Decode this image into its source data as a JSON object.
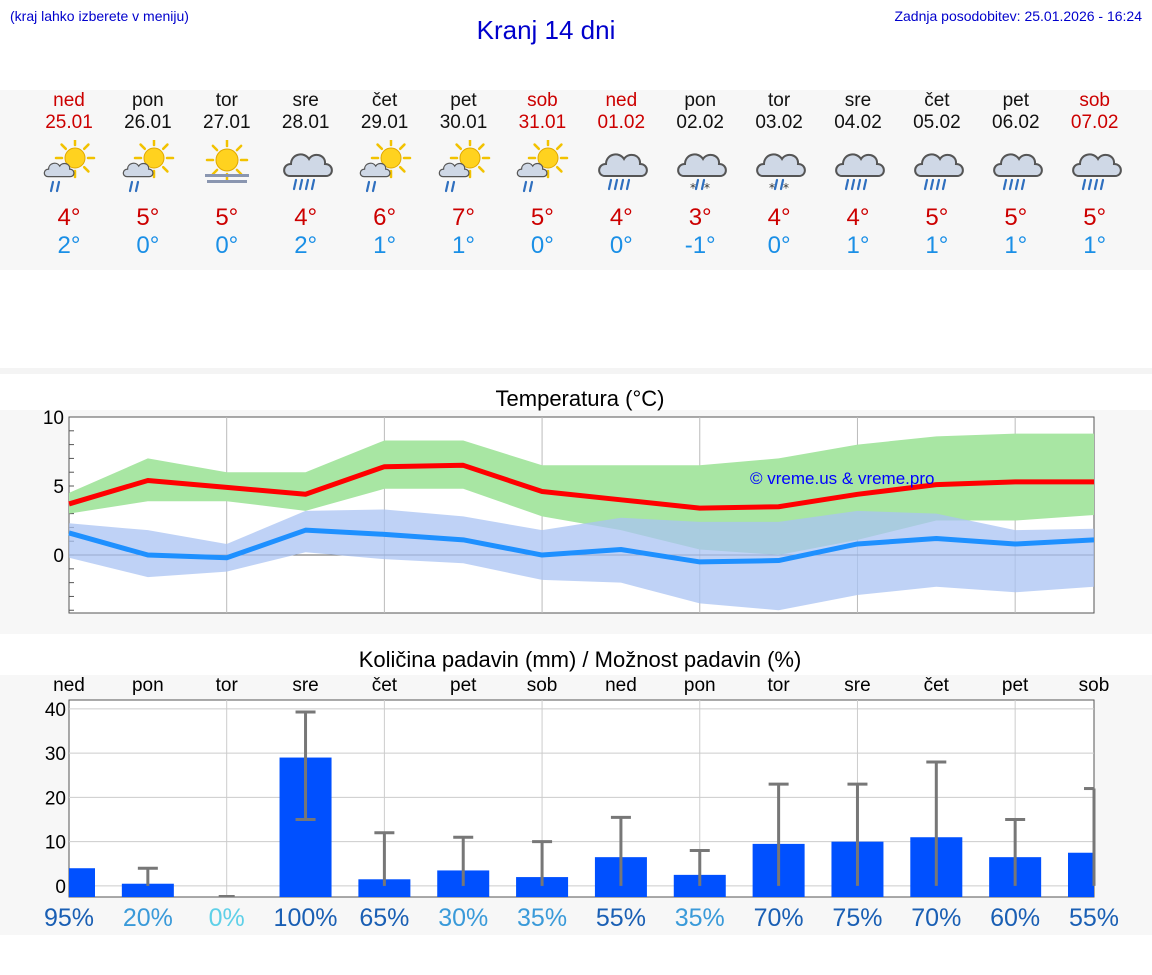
{
  "header": {
    "hint": "(kraj lahko izberete v meniju)",
    "title": "Kranj 14 dni",
    "updated": "Zadnja posodobitev: 25.01.2026 - 16:24"
  },
  "colors": {
    "max": "#cc0000",
    "min": "#1a8fe6",
    "max_line": "#ff0000",
    "min_line": "#1e90ff",
    "max_band": "#a8e6a3",
    "min_band": "#a9c3f3",
    "bar": "#0050ff",
    "errbar": "#777777"
  },
  "days": [
    {
      "name": "ned",
      "date": "25.01",
      "weekend": true,
      "icon": "sun-cloud-rain-icon",
      "tmax": "4°",
      "tmin": "2°"
    },
    {
      "name": "pon",
      "date": "26.01",
      "weekend": false,
      "icon": "sun-cloud-rain-icon",
      "tmax": "5°",
      "tmin": "0°"
    },
    {
      "name": "tor",
      "date": "27.01",
      "weekend": false,
      "icon": "sun-fog-icon",
      "tmax": "5°",
      "tmin": "0°"
    },
    {
      "name": "sre",
      "date": "28.01",
      "weekend": false,
      "icon": "cloud-rain-icon",
      "tmax": "4°",
      "tmin": "2°"
    },
    {
      "name": "čet",
      "date": "29.01",
      "weekend": false,
      "icon": "sun-cloud-rain-icon",
      "tmax": "6°",
      "tmin": "1°"
    },
    {
      "name": "pet",
      "date": "30.01",
      "weekend": false,
      "icon": "sun-cloud-rain-icon",
      "tmax": "7°",
      "tmin": "1°"
    },
    {
      "name": "sob",
      "date": "31.01",
      "weekend": true,
      "icon": "sun-cloud-rain-icon",
      "tmax": "5°",
      "tmin": "0°"
    },
    {
      "name": "ned",
      "date": "01.02",
      "weekend": true,
      "icon": "cloud-rain-icon",
      "tmax": "4°",
      "tmin": "0°"
    },
    {
      "name": "pon",
      "date": "02.02",
      "weekend": false,
      "icon": "cloud-sleet-icon",
      "tmax": "3°",
      "tmin": "-1°"
    },
    {
      "name": "tor",
      "date": "03.02",
      "weekend": false,
      "icon": "cloud-sleet-icon",
      "tmax": "4°",
      "tmin": "0°"
    },
    {
      "name": "sre",
      "date": "04.02",
      "weekend": false,
      "icon": "cloud-rain-icon",
      "tmax": "4°",
      "tmin": "1°"
    },
    {
      "name": "čet",
      "date": "05.02",
      "weekend": false,
      "icon": "cloud-rain-icon",
      "tmax": "5°",
      "tmin": "1°"
    },
    {
      "name": "pet",
      "date": "06.02",
      "weekend": false,
      "icon": "cloud-rain-icon",
      "tmax": "5°",
      "tmin": "1°"
    },
    {
      "name": "sob",
      "date": "07.02",
      "weekend": true,
      "icon": "cloud-rain-icon",
      "tmax": "5°",
      "tmin": "1°"
    }
  ],
  "chart_data": [
    {
      "type": "line",
      "title": "Temperatura (°C)",
      "watermark": "© vreme.us & vreme.pro",
      "ylim": [
        -4.2,
        10
      ],
      "yticks": [
        "10",
        "5",
        "0"
      ],
      "series": [
        {
          "name": "max",
          "values": [
            3.7,
            5.4,
            4.9,
            4.4,
            6.4,
            6.5,
            4.6,
            4.0,
            3.4,
            3.5,
            4.4,
            5.1,
            5.3,
            5.3
          ],
          "band_low": [
            3.0,
            3.9,
            3.9,
            3.2,
            4.8,
            4.8,
            2.8,
            1.8,
            0.4,
            0.0,
            1.1,
            2.5,
            2.5,
            2.9
          ],
          "band_high": [
            4.5,
            7.0,
            6.0,
            6.0,
            8.3,
            8.3,
            6.5,
            6.5,
            6.5,
            7.0,
            8.0,
            8.6,
            8.8,
            8.8
          ]
        },
        {
          "name": "min",
          "values": [
            1.6,
            0.0,
            -0.2,
            1.8,
            1.5,
            1.1,
            0.0,
            0.4,
            -0.5,
            -0.4,
            0.8,
            1.2,
            0.8,
            1.1
          ],
          "band_low": [
            -0.2,
            -1.6,
            -1.2,
            0.2,
            -0.3,
            -0.6,
            -1.8,
            -2.0,
            -3.5,
            -4.0,
            -2.9,
            -2.3,
            -2.7,
            -2.3
          ],
          "band_high": [
            2.3,
            1.8,
            0.8,
            3.2,
            3.3,
            2.8,
            1.8,
            2.7,
            2.4,
            2.4,
            3.2,
            3.0,
            1.8,
            1.9
          ]
        }
      ]
    },
    {
      "type": "bar",
      "title": "Količina padavin (mm) / Možnost padavin (%)",
      "ylim": [
        -2.5,
        42
      ],
      "yticks": [
        "40",
        "30",
        "20",
        "10",
        "0"
      ],
      "categories": [
        "ned",
        "pon",
        "tor",
        "sre",
        "čet",
        "pet",
        "sob",
        "ned",
        "pon",
        "tor",
        "sre",
        "čet",
        "pet",
        "sob"
      ],
      "values": [
        4.0,
        0.5,
        0,
        29,
        1.5,
        3.5,
        2.0,
        6.5,
        2.5,
        9.5,
        10.0,
        11.0,
        6.5,
        7.5
      ],
      "err_low": [
        0,
        0,
        0,
        15,
        0,
        0,
        0,
        0,
        0,
        0,
        0,
        0,
        0,
        0
      ],
      "err_high": [
        0,
        4,
        0,
        40,
        12,
        11,
        10,
        15.5,
        8,
        23,
        23,
        28,
        15,
        22
      ],
      "chance": [
        "95%",
        "20%",
        "0%",
        "100%",
        "65%",
        "30%",
        "35%",
        "55%",
        "35%",
        "70%",
        "75%",
        "70%",
        "60%",
        "55%"
      ],
      "chance_values": [
        95,
        20,
        0,
        100,
        65,
        30,
        35,
        55,
        35,
        70,
        75,
        70,
        60,
        55
      ]
    }
  ]
}
